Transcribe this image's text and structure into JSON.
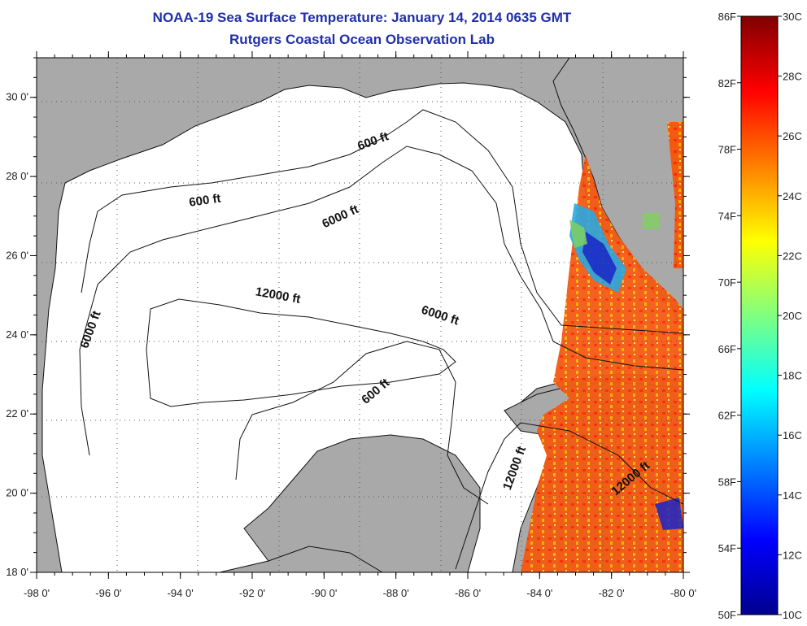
{
  "header": {
    "title": "NOAA-19 Sea Surface Temperature:  January 14, 2014 0635 GMT",
    "subtitle": "Rutgers Coastal Ocean Observation Lab"
  },
  "axes": {
    "lon_labels": [
      "-98 0'",
      "-96 0'",
      "-94 0'",
      "-92 0'",
      "-90 0'",
      "-88 0'",
      "-86 0'",
      "-84 0'",
      "-82 0'",
      "-80 0'"
    ],
    "lat_labels": [
      "30 0'",
      "28 0'",
      "26 0'",
      "24 0'",
      "22 0'",
      "20 0'",
      "18 0'"
    ],
    "lon_values": [
      -98,
      -96,
      -94,
      -92,
      -90,
      -88,
      -86,
      -84,
      -82,
      -80
    ],
    "lat_values": [
      30,
      28,
      26,
      24,
      22,
      20,
      18
    ]
  },
  "contour_labels": [
    {
      "text": "600 ft",
      "lon": -93.3,
      "lat": 27.3,
      "angle": -8
    },
    {
      "text": "600 ft",
      "lon": -88.6,
      "lat": 28.8,
      "angle": -20
    },
    {
      "text": "6000 ft",
      "lon": -89.5,
      "lat": 26.9,
      "angle": -25
    },
    {
      "text": "12000 ft",
      "lon": -91.3,
      "lat": 24.9,
      "angle": 10
    },
    {
      "text": "6000 ft",
      "lon": -86.8,
      "lat": 24.4,
      "angle": 18
    },
    {
      "text": "600 ft",
      "lon": -88.5,
      "lat": 22.5,
      "angle": -40
    },
    {
      "text": "6000 ft",
      "lon": -96.4,
      "lat": 24.1,
      "angle": -70
    },
    {
      "text": "12000 ft",
      "lon": -84.6,
      "lat": 20.6,
      "angle": -70
    },
    {
      "text": "12000 ft",
      "lon": -81.4,
      "lat": 20.3,
      "angle": -40
    }
  ],
  "colorbar": {
    "fahrenheit_labels": [
      "86F",
      "82F",
      "78F",
      "74F",
      "70F",
      "66F",
      "62F",
      "58F",
      "54F",
      "50F"
    ],
    "celsius_labels": [
      "30C",
      "28C",
      "26C",
      "24C",
      "22C",
      "20C",
      "18C",
      "16C",
      "14C",
      "12C",
      "10C"
    ],
    "fahrenheit_values": [
      86,
      82,
      78,
      74,
      70,
      66,
      62,
      58,
      54,
      50
    ],
    "celsius_values": [
      30,
      28,
      26,
      24,
      22,
      20,
      18,
      16,
      14,
      12,
      10
    ],
    "range_c": [
      10,
      30
    ],
    "colors": [
      "#00008f",
      "#0000ff",
      "#0080ff",
      "#00ffff",
      "#80ff80",
      "#ffff00",
      "#ff8000",
      "#ff0000",
      "#800000"
    ]
  },
  "colors": {
    "land": "#a9a9a9",
    "ocean": "#ffffff",
    "title": "#1f2fa8",
    "sst_warm": "#f25a12",
    "sst_cool": "#2aa8e0",
    "sst_cold": "#1a24c8",
    "sst_green": "#7fd060"
  }
}
